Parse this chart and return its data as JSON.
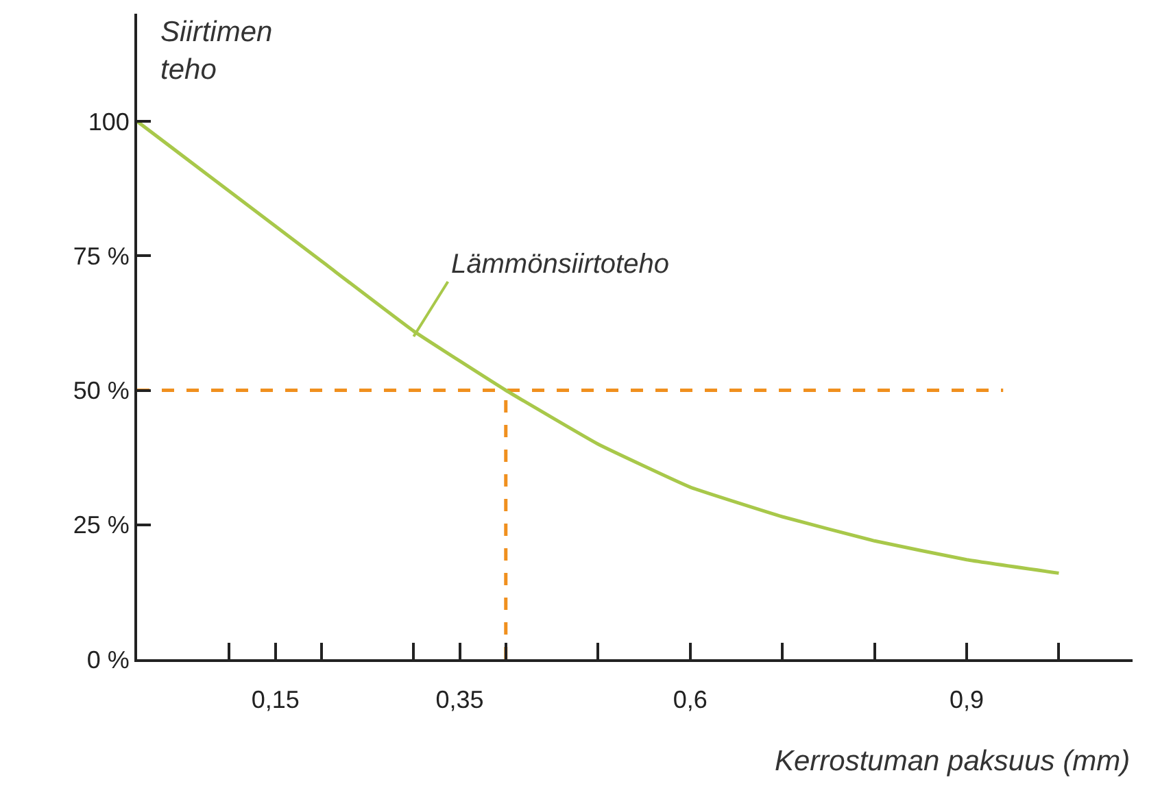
{
  "chart_data": {
    "type": "line",
    "xlabel": "Kerrostuman paksuus (mm)",
    "ylabel": "Siirtimen\nteho",
    "x": [
      0,
      0.1,
      0.2,
      0.3,
      0.4,
      0.5,
      0.6,
      0.7,
      0.8,
      0.9,
      1.0
    ],
    "series": [
      {
        "color": "#a8c84a",
        "values": [
          100,
          87,
          74,
          61,
          50,
          40,
          32,
          26.5,
          22,
          18.5,
          16
        ]
      }
    ],
    "xlim": [
      0,
      1.08
    ],
    "ylim": [
      0,
      120
    ],
    "xticks": [
      {
        "value": 0.1,
        "label": null
      },
      {
        "value": 0.15,
        "label": "0,15"
      },
      {
        "value": 0.2,
        "label": null
      },
      {
        "value": 0.3,
        "label": null
      },
      {
        "value": 0.35,
        "label": "0,35"
      },
      {
        "value": 0.4,
        "label": null
      },
      {
        "value": 0.5,
        "label": null
      },
      {
        "value": 0.6,
        "label": "0,6"
      },
      {
        "value": 0.7,
        "label": null
      },
      {
        "value": 0.8,
        "label": null
      },
      {
        "value": 0.9,
        "label": "0,9"
      },
      {
        "value": 1.0,
        "label": null
      }
    ],
    "yticks": [
      {
        "value": 0,
        "label": "0 %"
      },
      {
        "value": 25,
        "label": "25 %"
      },
      {
        "value": 50,
        "label": "50 %"
      },
      {
        "value": 75,
        "label": "75 %"
      },
      100
    ],
    "ref_lines": [
      {
        "axis": "y",
        "value": 50,
        "color": "#f0901e",
        "line_style": "dashed"
      },
      {
        "axis": "x",
        "value": 0.4,
        "color": "#f0901e",
        "line_style": "dashed"
      }
    ],
    "annotations": [
      {
        "text": "Lämmönsiirtoteho",
        "x": 0.3,
        "y": 60
      }
    ],
    "grid": false,
    "legend": false,
    "marker": "none",
    "line_style": "solid"
  }
}
